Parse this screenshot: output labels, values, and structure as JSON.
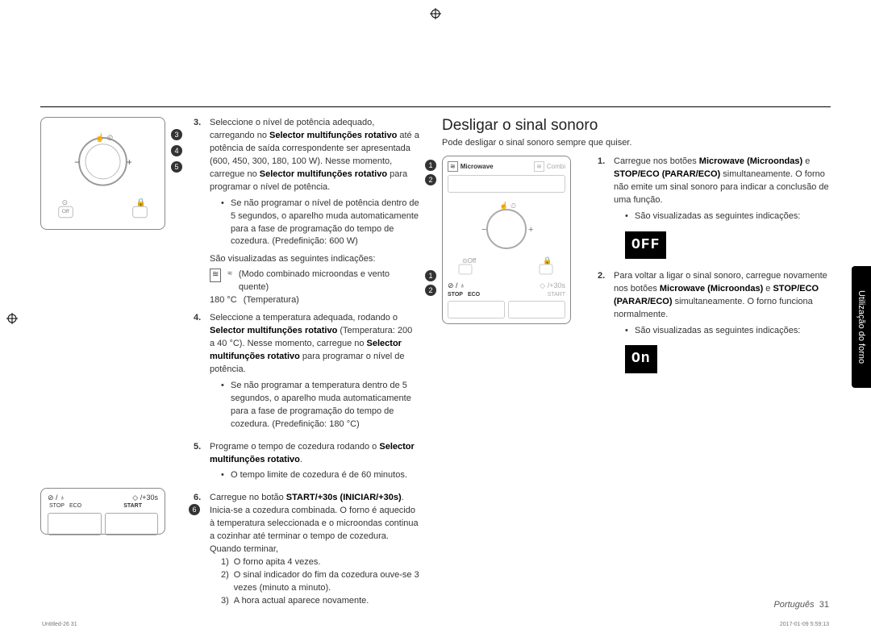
{
  "cropSymbol": "⊕",
  "left": {
    "dialBadges": [
      "3",
      "4",
      "5"
    ],
    "bottomBadge": "6",
    "bottomPanel": {
      "stopLabel": "STOP",
      "ecoLabel": "ECO",
      "startLabel": "START",
      "startExtra": "◇ /+30s",
      "stopIcon": "⊘ / ♁"
    },
    "steps": [
      {
        "n": "3.",
        "body": "Seleccione o nível de potência adequado, carregando no <b>Selector multifunções rotativo</b> até a potência de saída correspondente ser apresentada (600, 450, 300, 180, 100 W). Nesse momento, carregue no <b>Selector multifunções rotativo</b> para programar o nível de potência.",
        "bullets": [
          "Se não programar o nível de potência dentro de 5 segundos, o aparelho muda automaticamente para a fase de programação do tempo de cozedura. (Predefinição: 600 W)"
        ],
        "after": "São visualizadas as seguintes indicações:",
        "iconLine1": "(Modo combinado microondas e vento quente)",
        "iconLine2a": "180 °C",
        "iconLine2b": "(Temperatura)"
      },
      {
        "n": "4.",
        "body": "Seleccione a temperatura adequada, rodando o <b>Selector multifunções rotativo</b> (Temperatura: 200 a 40 °C). Nesse momento, carregue no <b>Selector multifunções rotativo</b> para programar o nível de potência.",
        "bullets": [
          "Se não programar a temperatura dentro de 5 segundos, o aparelho muda automaticamente para a fase de programação do tempo de cozedura. (Predefinição: 180 °C)"
        ]
      },
      {
        "n": "5.",
        "body": "Programe o tempo de cozedura rodando o <b>Selector multifunções rotativo</b>.",
        "bullets": [
          "O tempo limite de cozedura é de 60 minutos."
        ]
      },
      {
        "n": "6.",
        "body": "Carregue no botão <b>START/+30s (INICIAR/+30s)</b>. Inicia-se a cozedura combinada. O forno é aquecido à temperatura seleccionada e o microondas continua a cozinhar até terminar o tempo de cozedura. Quando terminar,",
        "sub": [
          {
            "k": "1)",
            "t": "O forno apita 4 vezes."
          },
          {
            "k": "2)",
            "t": "O sinal indicador do fim da cozedura ouve-se 3 vezes (minuto a minuto)."
          },
          {
            "k": "3)",
            "t": "A hora actual aparece novamente."
          }
        ]
      }
    ]
  },
  "right": {
    "title": "Desligar o sinal sonoro",
    "subtitle": "Pode desligar o sinal sonoro sempre que quiser.",
    "panel": {
      "topBadges": [
        "1",
        "2"
      ],
      "microwaveLabel": "Microwave",
      "combiLabel": "Combi",
      "botBadges": [
        "1",
        "2"
      ],
      "stopLabel": "STOP",
      "ecoLabel": "ECO",
      "startLabel": "START",
      "stopIcon": "⊘ / ♁",
      "startIcon": "◇ /+30s"
    },
    "steps": [
      {
        "n": "1.",
        "body": "Carregue nos botões <b>Microwave (Microondas)</b> e <b>STOP/ECO (PARAR/ECO)</b> simultaneamente. O forno não emite um sinal sonoro para indicar a conclusão de uma função.",
        "bulletLabel": "São visualizadas as seguintes indicações:",
        "display": "OFF"
      },
      {
        "n": "2.",
        "body": "Para voltar a ligar o sinal sonoro, carregue novamente nos botões <b>Microwave (Microondas)</b> e <b>STOP/ECO (PARAR/ECO)</b> simultaneamente. O forno funciona normalmente.",
        "bulletLabel": "São visualizadas as seguintes indicações:",
        "display": "On"
      }
    ]
  },
  "sideTab": "Utilização do forno",
  "footer": {
    "lang": "Português",
    "pageNum": "31",
    "leftMeta": "Untitled-26   31",
    "rightMeta": "2017-01-09   5:59:13"
  }
}
